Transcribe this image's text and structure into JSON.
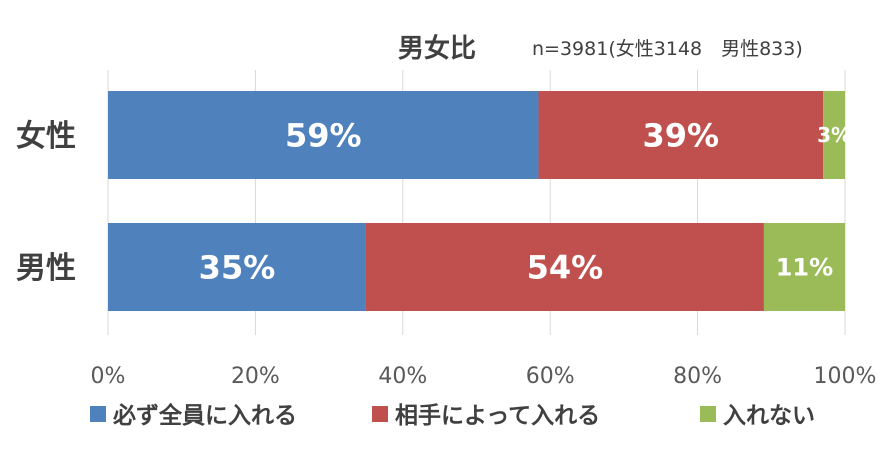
{
  "chart_data": {
    "type": "bar",
    "orientation": "horizontal",
    "stacked": true,
    "title": "男女比",
    "subtitle": "n=3981(女性3148　男性833)",
    "categories": [
      "女性",
      "男性"
    ],
    "series": [
      {
        "name": "必ず全員に入れる",
        "values": [
          59,
          35
        ],
        "labels": [
          "59%",
          "35%"
        ],
        "color": "#4f81bd"
      },
      {
        "name": "相手によって入れる",
        "values": [
          39,
          54
        ],
        "labels": [
          "39%",
          "54%"
        ],
        "color": "#c0504d"
      },
      {
        "name": "入れない",
        "values": [
          3,
          11
        ],
        "labels": [
          "3%",
          "11%"
        ],
        "color": "#9bbb59"
      }
    ],
    "xlim": [
      0,
      100
    ],
    "xticks": [
      "0%",
      "20%",
      "40%",
      "60%",
      "80%",
      "100%"
    ],
    "grid": true,
    "legend": "bottom"
  }
}
